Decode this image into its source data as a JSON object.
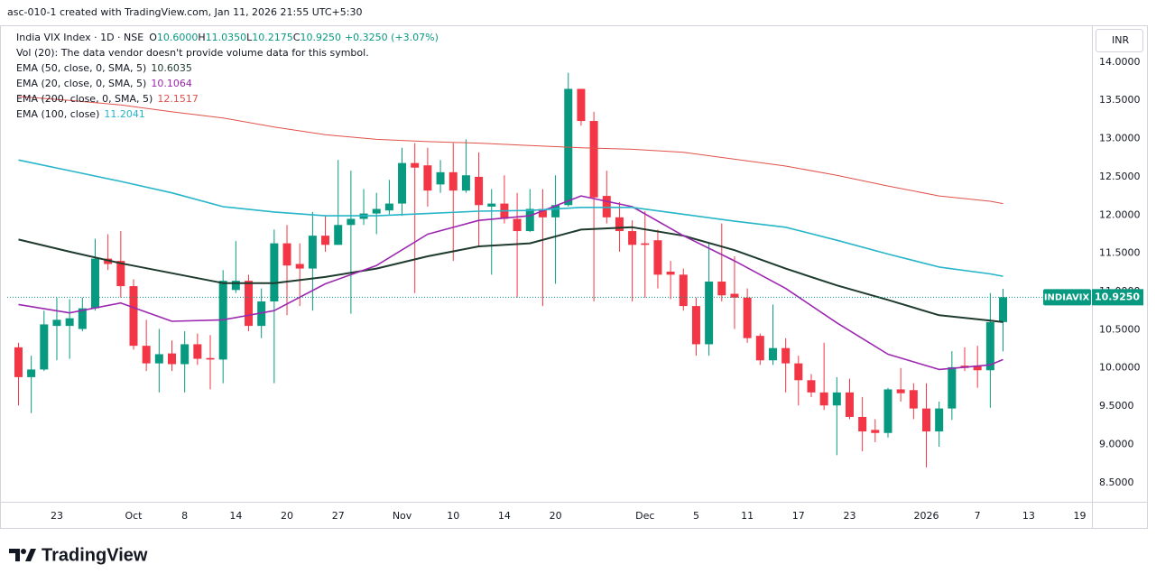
{
  "header": "asc-010-1 created with TradingView.com, Jan 11, 2026 21:55 UTC+5:30",
  "brand": "TradingView",
  "currency": "INR",
  "chart_data": {
    "type": "candlestick",
    "title": "India VIX Index · 1D · NSE",
    "ohlc_legend": [
      {
        "key": "O",
        "value": "10.6000"
      },
      {
        "key": "H",
        "value": "11.0350"
      },
      {
        "key": "L",
        "value": "10.2175"
      },
      {
        "key": "C",
        "value": "10.9250"
      }
    ],
    "change": "+0.3250 (+3.07%)",
    "volume_note": "Vol (20): The data vendor doesn't provide volume data for this symbol.",
    "up_color": "#089981",
    "down_color": "#f23645",
    "open": [
      10.27,
      9.88,
      9.98,
      10.55,
      10.55,
      10.51,
      10.78,
      11.43,
      11.4,
      11.07,
      10.29,
      10.06,
      10.19,
      10.05,
      10.31,
      10.13,
      10.11,
      11.02,
      11.14,
      10.55,
      10.87,
      11.63,
      11.36,
      11.3,
      11.73,
      11.61,
      11.87,
      11.95,
      12.02,
      12.06,
      12.15,
      12.68,
      12.65,
      12.4,
      12.56,
      12.32,
      12.5,
      12.11,
      12.15,
      11.95,
      11.79,
      12.08,
      11.97,
      12.13,
      13.65,
      13.23,
      12.25,
      11.97,
      11.79,
      11.63,
      11.67,
      11.26,
      11.22,
      10.81,
      10.31,
      11.13,
      10.97,
      10.92,
      10.42,
      10.1,
      10.26,
      10.06,
      9.84,
      9.68,
      9.51,
      9.68,
      9.36,
      9.19,
      9.15,
      9.72,
      9.71,
      9.47,
      9.17,
      9.47,
      10.03,
      10.03,
      9.97,
      10.6
    ],
    "high": [
      10.33,
      10.16,
      10.75,
      10.92,
      10.9,
      10.92,
      11.69,
      11.75,
      11.79,
      11.16,
      10.63,
      10.51,
      10.36,
      10.48,
      10.45,
      10.43,
      11.28,
      11.66,
      11.22,
      11.04,
      11.81,
      11.87,
      11.63,
      12.04,
      11.99,
      12.72,
      12.58,
      12.34,
      12.29,
      12.46,
      12.88,
      12.94,
      12.88,
      12.72,
      12.94,
      12.99,
      12.82,
      12.34,
      12.52,
      12.29,
      12.34,
      12.34,
      12.52,
      13.86,
      13.65,
      13.35,
      12.58,
      12.17,
      11.93,
      12.05,
      11.81,
      11.4,
      11.3,
      10.92,
      11.63,
      11.89,
      11.46,
      11.04,
      10.45,
      10.83,
      10.39,
      10.16,
      9.92,
      10.33,
      9.88,
      9.86,
      9.62,
      9.33,
      9.74,
      10.0,
      9.8,
      9.8,
      9.56,
      10.22,
      10.27,
      10.29,
      10.98,
      11.035
    ],
    "low": [
      9.51,
      9.41,
      9.96,
      10.1,
      10.12,
      10.48,
      10.75,
      11.28,
      10.92,
      10.24,
      9.96,
      9.68,
      9.96,
      9.68,
      10.04,
      9.72,
      9.8,
      10.98,
      10.48,
      10.39,
      9.8,
      10.69,
      10.81,
      10.75,
      11.52,
      11.61,
      10.71,
      11.87,
      11.75,
      12.01,
      11.99,
      10.98,
      12.11,
      12.29,
      11.4,
      12.29,
      11.58,
      11.22,
      11.89,
      10.92,
      11.78,
      10.81,
      11.1,
      12.11,
      13.17,
      10.87,
      11.89,
      11.52,
      10.87,
      10.92,
      11.04,
      10.9,
      10.75,
      10.16,
      10.16,
      10.87,
      10.51,
      10.33,
      10.04,
      10.04,
      9.68,
      9.51,
      9.62,
      9.45,
      8.86,
      9.33,
      8.91,
      9.03,
      9.09,
      9.56,
      9.33,
      8.7,
      8.97,
      9.32,
      9.96,
      9.74,
      9.48,
      10.2175
    ],
    "close": [
      9.88,
      9.98,
      10.57,
      10.63,
      10.65,
      10.78,
      11.43,
      11.36,
      11.07,
      10.29,
      10.06,
      10.18,
      10.05,
      10.31,
      10.12,
      10.11,
      11.14,
      11.14,
      10.55,
      10.87,
      11.63,
      11.34,
      11.3,
      11.73,
      11.61,
      11.87,
      11.95,
      12.02,
      12.08,
      12.15,
      12.68,
      12.62,
      12.32,
      12.56,
      12.32,
      12.52,
      12.13,
      12.15,
      11.95,
      11.79,
      12.08,
      11.97,
      12.13,
      13.65,
      13.23,
      12.23,
      11.97,
      11.79,
      11.61,
      11.61,
      11.22,
      11.22,
      10.81,
      10.31,
      11.13,
      10.95,
      10.92,
      10.39,
      10.1,
      10.26,
      10.06,
      9.84,
      9.68,
      9.51,
      9.68,
      9.36,
      9.17,
      9.15,
      9.72,
      9.67,
      9.47,
      9.17,
      9.47,
      10.01,
      10.0,
      9.97,
      10.6,
      10.925
    ],
    "overlays": [
      {
        "name": "EMA (50, close, 0, SMA, 5)",
        "value_label": "10.6035",
        "color": "#1e3b2e",
        "width": 2,
        "x": [
          0,
          4,
          8,
          12,
          16,
          20,
          24,
          28,
          32,
          36,
          40,
          44,
          48,
          52,
          56,
          60,
          64,
          68,
          72,
          76,
          77
        ],
        "values": [
          11.68,
          11.52,
          11.37,
          11.24,
          11.11,
          11.11,
          11.19,
          11.3,
          11.46,
          11.59,
          11.63,
          11.81,
          11.84,
          11.73,
          11.54,
          11.3,
          11.08,
          10.89,
          10.69,
          10.62,
          10.6
        ]
      },
      {
        "name": "EMA (20, close, 0, SMA, 5)",
        "value_label": "10.1064",
        "color": "#9c27b0",
        "width": 1.6,
        "x": [
          0,
          4,
          8,
          12,
          16,
          20,
          24,
          28,
          32,
          36,
          40,
          44,
          48,
          52,
          56,
          60,
          64,
          68,
          72,
          76,
          77
        ],
        "values": [
          10.83,
          10.72,
          10.85,
          10.61,
          10.63,
          10.75,
          11.1,
          11.34,
          11.75,
          11.93,
          11.99,
          12.25,
          12.11,
          11.73,
          11.4,
          11.04,
          10.59,
          10.18,
          9.98,
          10.04,
          10.11
        ]
      },
      {
        "name": "EMA (200, close, 0, SMA, 5)",
        "value_label": "12.1517",
        "color": "#e0514a",
        "width": 1,
        "x": [
          0,
          4,
          8,
          12,
          16,
          20,
          24,
          28,
          32,
          36,
          40,
          44,
          48,
          52,
          56,
          60,
          64,
          68,
          72,
          76,
          77
        ],
        "values": [
          13.55,
          13.5,
          13.44,
          13.35,
          13.27,
          13.15,
          13.05,
          12.99,
          12.96,
          12.94,
          12.91,
          12.88,
          12.86,
          12.82,
          12.73,
          12.64,
          12.52,
          12.38,
          12.25,
          12.18,
          12.15
        ]
      },
      {
        "name": "EMA (100, close)",
        "value_label": "11.2041",
        "color": "#26b5c9",
        "width": 1.6,
        "x": [
          0,
          4,
          8,
          12,
          16,
          20,
          24,
          28,
          32,
          36,
          40,
          44,
          48,
          52,
          56,
          60,
          64,
          68,
          72,
          76,
          77
        ],
        "values": [
          12.72,
          12.58,
          12.44,
          12.29,
          12.11,
          12.04,
          11.99,
          11.99,
          12.02,
          12.05,
          12.06,
          12.1,
          12.1,
          12.01,
          11.92,
          11.84,
          11.67,
          11.49,
          11.32,
          11.23,
          11.2
        ]
      }
    ],
    "price_label": {
      "symbol": "INDIAVIX",
      "label": "10.9250"
    },
    "xlim": [
      -0.88,
      83.95
    ],
    "xticks": [
      {
        "value": 3,
        "label": "23"
      },
      {
        "value": 9,
        "label": "Oct"
      },
      {
        "value": 13,
        "label": "8"
      },
      {
        "value": 17,
        "label": "14"
      },
      {
        "value": 21,
        "label": "20"
      },
      {
        "value": 25,
        "label": "27"
      },
      {
        "value": 30,
        "label": "Nov"
      },
      {
        "value": 34,
        "label": "10"
      },
      {
        "value": 38,
        "label": "14"
      },
      {
        "value": 42,
        "label": "20"
      },
      {
        "value": 49,
        "label": "Dec"
      },
      {
        "value": 53,
        "label": "5"
      },
      {
        "value": 57,
        "label": "11"
      },
      {
        "value": 61,
        "label": "17"
      },
      {
        "value": 65,
        "label": "23"
      },
      {
        "value": 71,
        "label": "2026"
      },
      {
        "value": 75,
        "label": "7"
      },
      {
        "value": 79,
        "label": "13"
      },
      {
        "value": 83,
        "label": "19"
      }
    ],
    "ylim": [
      8.25,
      14.47
    ],
    "yticks": [
      {
        "value": 14,
        "label": "14.0000"
      },
      {
        "value": 13.5,
        "label": "13.5000"
      },
      {
        "value": 13,
        "label": "13.0000"
      },
      {
        "value": 12.5,
        "label": "12.5000"
      },
      {
        "value": 12,
        "label": "12.0000"
      },
      {
        "value": 11.5,
        "label": "11.5000"
      },
      {
        "value": 11,
        "label": "11.0000"
      },
      {
        "value": 10.5,
        "label": "10.5000"
      },
      {
        "value": 10,
        "label": "10.0000"
      },
      {
        "value": 9.5,
        "label": "9.5000"
      },
      {
        "value": 9,
        "label": "9.0000"
      },
      {
        "value": 8.5,
        "label": "8.5000"
      }
    ],
    "grid": false
  }
}
